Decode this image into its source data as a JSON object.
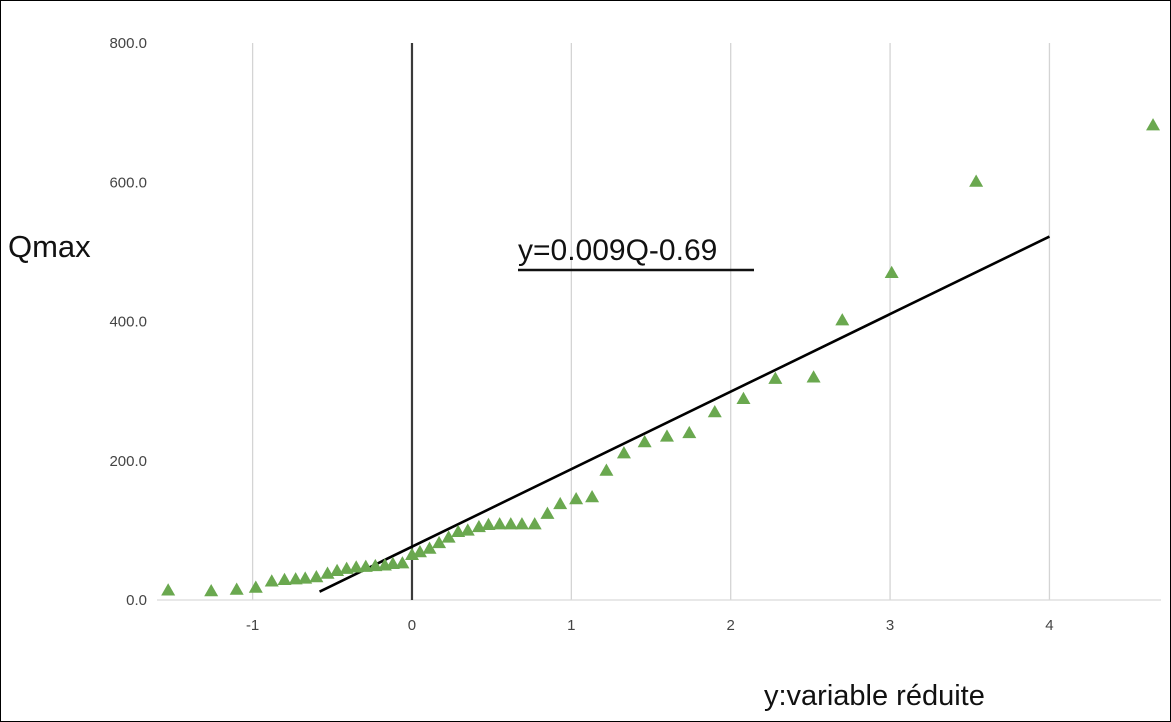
{
  "chart_data": {
    "type": "scatter",
    "title": "",
    "xlabel": "y:variable réduite",
    "ylabel": "Qmax",
    "xlim": [
      -1.6,
      4.7
    ],
    "ylim": [
      0,
      800
    ],
    "x_ticks": [
      {
        "value": -1,
        "label": "-1"
      },
      {
        "value": 0,
        "label": "0"
      },
      {
        "value": 1,
        "label": "1"
      },
      {
        "value": 2,
        "label": "2"
      },
      {
        "value": 3,
        "label": "3"
      },
      {
        "value": 4,
        "label": "4"
      }
    ],
    "y_ticks": [
      {
        "value": 0,
        "label": "0.0"
      },
      {
        "value": 200,
        "label": "200.0"
      },
      {
        "value": 400,
        "label": "400.0"
      },
      {
        "value": 600,
        "label": "600.0"
      },
      {
        "value": 800,
        "label": "800.0"
      }
    ],
    "grid": "vertical",
    "marker": "triangle",
    "marker_color": "#6aa84f",
    "series": [
      {
        "points": [
          [
            -1.53,
            14
          ],
          [
            -1.26,
            13
          ],
          [
            -1.1,
            15
          ],
          [
            -0.98,
            18
          ],
          [
            -0.88,
            27
          ],
          [
            -0.8,
            29
          ],
          [
            -0.73,
            30
          ],
          [
            -0.67,
            31
          ],
          [
            -0.6,
            33
          ],
          [
            -0.53,
            38
          ],
          [
            -0.47,
            42
          ],
          [
            -0.41,
            45
          ],
          [
            -0.35,
            47
          ],
          [
            -0.29,
            48
          ],
          [
            -0.23,
            49
          ],
          [
            -0.17,
            50
          ],
          [
            -0.12,
            52
          ],
          [
            -0.06,
            53
          ],
          [
            0.0,
            65
          ],
          [
            0.05,
            69
          ],
          [
            0.11,
            74
          ],
          [
            0.17,
            82
          ],
          [
            0.23,
            90
          ],
          [
            0.29,
            98
          ],
          [
            0.35,
            100
          ],
          [
            0.42,
            105
          ],
          [
            0.48,
            108
          ],
          [
            0.55,
            109
          ],
          [
            0.62,
            109
          ],
          [
            0.69,
            109
          ],
          [
            0.77,
            109
          ],
          [
            0.85,
            124
          ],
          [
            0.93,
            138
          ],
          [
            1.03,
            145
          ],
          [
            1.13,
            148
          ],
          [
            1.22,
            186
          ],
          [
            1.33,
            211
          ],
          [
            1.46,
            227
          ],
          [
            1.6,
            235
          ],
          [
            1.74,
            240
          ],
          [
            1.9,
            270
          ],
          [
            2.08,
            289
          ],
          [
            2.28,
            318
          ],
          [
            2.52,
            320
          ],
          [
            2.7,
            402
          ],
          [
            3.01,
            470
          ],
          [
            3.54,
            601
          ],
          [
            4.65,
            682
          ]
        ]
      }
    ],
    "trendline": {
      "x": [
        -0.58,
        4.0
      ],
      "y": [
        12,
        522
      ],
      "color": "#000000"
    },
    "annotation": "y=0.009Q-0.69"
  }
}
